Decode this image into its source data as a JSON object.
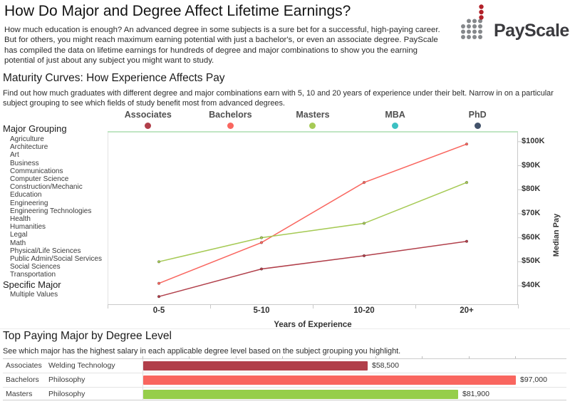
{
  "header": {
    "title": "How Do Major and Degree Affect Lifetime Earnings?",
    "intro": "How much education is enough? An advanced degree in some subjects is a sure bet for a successful, high-paying career. But for others, you might reach maximum earning potential with just a bachelor's, or even an associate degree. PayScale has compiled the data on lifetime earnings for hundreds of degree and major combinations to show you the earning potential of just about any subject you might want to study.",
    "logo_text": "PayScale"
  },
  "maturity": {
    "heading": "Maturity Curves: How Experience Affects Pay",
    "description": "Find out how much graduates with different degree and major combinations earn with 5, 10 and 20 years of experience under their belt. Narrow in on a particular subject grouping to see which fields of study benefit most from advanced degrees.",
    "filters": {
      "major_grouping_label": "Major Grouping",
      "major_groupings": [
        "Agriculture",
        "Architecture",
        "Art",
        "Business",
        "Communications",
        "Computer Science",
        "Construction/Mechanic",
        "Education",
        "Engineering",
        "Engineering Technologies",
        "Health",
        "Humanities",
        "Legal",
        "Math",
        "Physical/Life Sciences",
        "Public Admin/Social Services",
        "Social Sciences",
        "Transportation"
      ],
      "specific_major_label": "Specific Major",
      "specific_major_value": "Multiple Values"
    }
  },
  "top_paying": {
    "heading": "Top Paying Major by Degree Level",
    "description": "See which major has the highest salary in each applicable degree level based on the subject grouping you highlight."
  },
  "chart_data": [
    {
      "type": "line",
      "title": "Maturity Curves: How Experience Affects Pay",
      "categories": [
        "0-5",
        "5-10",
        "10-20",
        "20+"
      ],
      "xlabel": "Years of Experience",
      "ylabel": "Median Pay",
      "ylim_thousands": [
        32.3,
        104.4
      ],
      "yticks": [
        {
          "label": "$100K",
          "value": 100
        },
        {
          "label": "$90K",
          "value": 90
        },
        {
          "label": "$80K",
          "value": 80
        },
        {
          "label": "$70K",
          "value": 70
        },
        {
          "label": "$60K",
          "value": 60
        },
        {
          "label": "$50K",
          "value": 50
        },
        {
          "label": "$40K",
          "value": 40
        }
      ],
      "grid": false,
      "legend_position": "top",
      "legend": [
        {
          "name": "Associates",
          "color": "#b13f4a"
        },
        {
          "name": "Bachelors",
          "color": "#f9665f"
        },
        {
          "name": "Masters",
          "color": "#a6ca55"
        },
        {
          "name": "MBA",
          "color": "#3cc0c2"
        },
        {
          "name": "PhD",
          "color": "#42526a"
        }
      ],
      "series": [
        {
          "name": "Associates",
          "color": "#b13f4a",
          "values_thousands": [
            35.5,
            47,
            52.5,
            58.5
          ]
        },
        {
          "name": "Bachelors",
          "color": "#f9665f",
          "values_thousands": [
            41,
            58,
            83,
            99
          ]
        },
        {
          "name": "Masters",
          "color": "#a6ca55",
          "values_thousands": [
            50,
            60,
            66,
            83
          ]
        }
      ]
    },
    {
      "type": "bar",
      "title": "Top Paying Major by Degree Level",
      "orientation": "horizontal",
      "xlim": [
        0,
        107000
      ],
      "rows": [
        {
          "degree": "Associates",
          "major": "Welding Technology",
          "value": 58500,
          "label": "$58,500",
          "color": "#b13f4a"
        },
        {
          "degree": "Bachelors",
          "major": "Philosophy",
          "value": 97000,
          "label": "$97,000",
          "color": "#f9665f"
        },
        {
          "degree": "Masters",
          "major": "Philosophy",
          "value": 81900,
          "label": "$81,900",
          "color": "#96ce4b"
        }
      ]
    }
  ],
  "colors": {
    "legend_underline": "#c0e5c3",
    "axis_line": "#c9c9c9",
    "plot_left_border": "#e2e2e2",
    "logo_red": "#b22028",
    "logo_gray": "#85888b",
    "text_dark": "#333333"
  }
}
